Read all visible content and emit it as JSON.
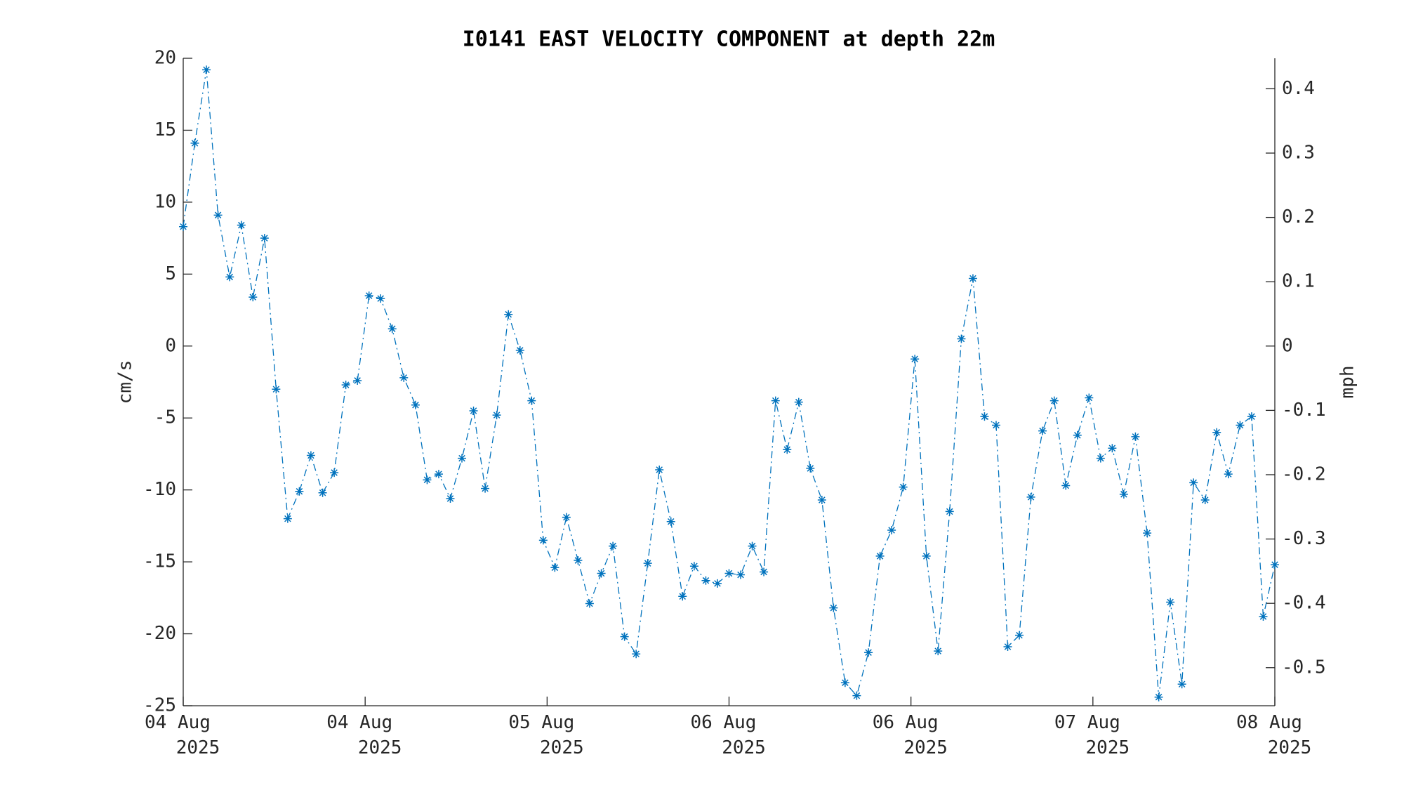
{
  "chart_data": {
    "type": "line",
    "title": "I0141 EAST VELOCITY COMPONENT at depth 22m",
    "ylabel": "cm/s",
    "y2label": "mph",
    "color": "#0072bd",
    "marker": "asterisk",
    "linestyle": "dashdot",
    "xlim": [
      0,
      96
    ],
    "xticks": [
      {
        "value": 0,
        "label": "04 Aug 2025"
      },
      {
        "value": 16,
        "label": "04 Aug 2025"
      },
      {
        "value": 32,
        "label": "05 Aug 2025"
      },
      {
        "value": 48,
        "label": "06 Aug 2025"
      },
      {
        "value": 64,
        "label": "06 Aug 2025"
      },
      {
        "value": 80,
        "label": "07 Aug 2025"
      },
      {
        "value": 96,
        "label": "08 Aug 2025"
      }
    ],
    "ylim": [
      -25,
      20
    ],
    "yticks": [
      -25,
      -20,
      -15,
      -10,
      -5,
      0,
      5,
      10,
      15,
      20
    ],
    "y2lim": [
      -0.5592,
      0.4474
    ],
    "y2ticks": [
      -0.5,
      -0.4,
      -0.3,
      -0.2,
      -0.1,
      0,
      0.1,
      0.2,
      0.3,
      0.4
    ],
    "x": [
      0,
      1.02,
      2.04,
      3.06,
      4.09,
      5.11,
      6.13,
      7.15,
      8.17,
      9.19,
      10.21,
      11.23,
      12.26,
      13.28,
      14.3,
      15.32,
      16.34,
      17.36,
      18.38,
      19.4,
      20.43,
      21.45,
      22.47,
      23.49,
      24.51,
      25.53,
      26.55,
      27.57,
      28.6,
      29.62,
      30.64,
      31.66,
      32.68,
      33.7,
      34.72,
      35.74,
      36.77,
      37.79,
      38.81,
      39.83,
      40.85,
      41.87,
      42.89,
      43.91,
      44.94,
      45.96,
      46.98,
      48,
      49.02,
      50.04,
      51.06,
      52.09,
      53.11,
      54.13,
      55.15,
      56.17,
      57.19,
      58.21,
      59.23,
      60.26,
      61.28,
      62.3,
      63.32,
      64.34,
      65.36,
      66.38,
      67.4,
      68.43,
      69.45,
      70.47,
      71.49,
      72.51,
      73.53,
      74.55,
      75.57,
      76.6,
      77.62,
      78.64,
      79.66,
      80.68,
      81.7,
      82.72,
      83.74,
      84.77,
      85.79,
      86.81,
      87.83,
      88.85,
      89.87,
      90.89,
      91.91,
      92.94,
      93.96,
      94.98,
      96
    ],
    "values": [
      8.3,
      14.1,
      19.2,
      9.1,
      4.8,
      8.4,
      3.4,
      7.5,
      -3.0,
      -12.0,
      -10.1,
      -7.6,
      -10.2,
      -8.8,
      -2.7,
      -2.4,
      3.5,
      3.3,
      1.2,
      -2.2,
      -4.1,
      -9.3,
      -8.9,
      -10.6,
      -7.8,
      -4.5,
      -9.9,
      -4.8,
      2.2,
      -0.3,
      -3.8,
      -13.5,
      -15.4,
      -11.9,
      -14.9,
      -17.9,
      -15.8,
      -13.9,
      -20.2,
      -21.4,
      -15.1,
      -8.6,
      -12.2,
      -17.4,
      -15.3,
      -16.3,
      -16.5,
      -15.8,
      -15.9,
      -13.9,
      -15.7,
      -3.8,
      -7.2,
      -3.9,
      -8.5,
      -10.7,
      -18.2,
      -23.4,
      -24.3,
      -21.3,
      -14.6,
      -12.8,
      -9.8,
      -0.9,
      -14.6,
      -21.2,
      -11.5,
      0.5,
      4.7,
      -4.9,
      -5.5,
      -20.9,
      -20.1,
      -10.5,
      -5.9,
      -3.8,
      -9.7,
      -6.2,
      -3.6,
      -7.8,
      -7.1,
      -10.3,
      -6.3,
      -13.0,
      -24.4,
      -17.8,
      -23.5,
      -9.5,
      -10.7,
      -6.0,
      -8.9,
      -5.5,
      -4.9,
      -18.8,
      -15.2
    ]
  }
}
